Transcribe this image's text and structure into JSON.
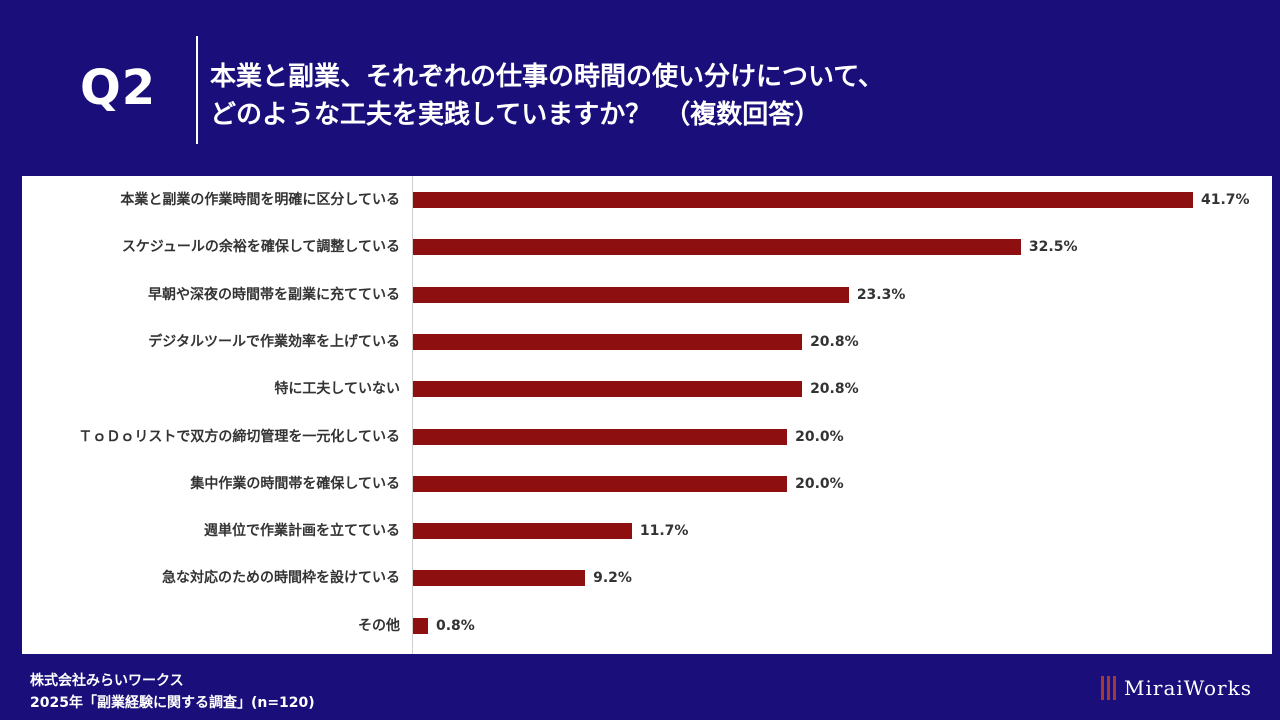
{
  "header": {
    "q_label": "Q2",
    "title_line1": "本業と副業、それぞれの仕事の時間の使い分けについて、",
    "title_line2": "どのような工夫を実践していますか？　（複数回答）"
  },
  "footer": {
    "company": "株式会社みらいワークス",
    "survey": "2025年「副業経験に関する調査」(n=120)"
  },
  "logo": {
    "text": "MiraiWorks"
  },
  "colors": {
    "background": "#1a0f7a",
    "bar": "#8e0f0f",
    "panel": "#ffffff",
    "logo_mark": "#a33a33"
  },
  "chart_data": {
    "type": "bar",
    "orientation": "horizontal",
    "title": "本業と副業、それぞれの仕事の時間の使い分けについて、どのような工夫を実践していますか？　（複数回答）",
    "xlabel": "",
    "ylabel": "",
    "xlim": [
      0,
      43
    ],
    "grid": false,
    "categories": [
      "本業と副業の作業時間を明確に区分している",
      "スケジュールの余裕を確保して調整している",
      "早朝や深夜の時間帯を副業に充てている",
      "デジタルツールで作業効率を上げている",
      "特に工夫していない",
      "ＴｏＤｏリストで双方の締切管理を一元化している",
      "集中作業の時間帯を確保している",
      "週単位で作業計画を立てている",
      "急な対応のための時間枠を設けている",
      "その他"
    ],
    "values": [
      41.7,
      32.5,
      23.3,
      20.8,
      20.8,
      20.0,
      20.0,
      11.7,
      9.2,
      0.8
    ],
    "value_labels": [
      "41.7%",
      "32.5%",
      "23.3%",
      "20.8%",
      "20.8%",
      "20.0%",
      "20.0%",
      "11.7%",
      "9.2%",
      "0.8%"
    ]
  }
}
